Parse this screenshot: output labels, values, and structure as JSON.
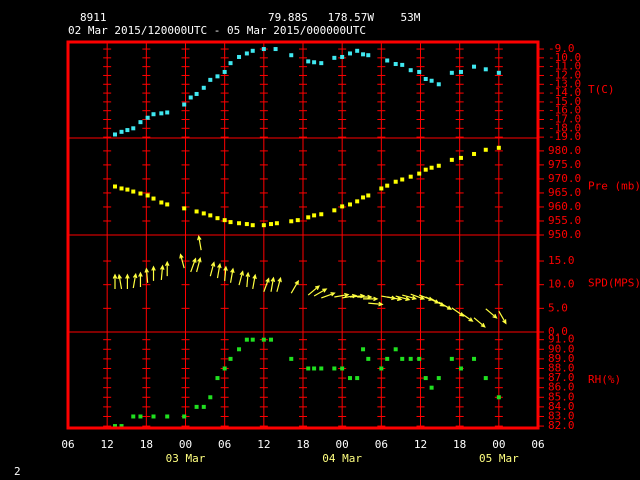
{
  "header": {
    "station": "8911",
    "location": "79.88S   178.57W    53M",
    "period": "02 Mar 2015/120000UTC - 05 Mar 2015/000000UTC"
  },
  "footer": {
    "page": "2"
  },
  "chart_data": [
    {
      "type": "scatter",
      "y_label": "T(C)",
      "color": "#40e8f0",
      "xlim": [
        6,
        78
      ],
      "ylim": [
        -19.1,
        -8.2
      ],
      "yticks": [
        {
          "value": -9,
          "label": "-9.0"
        },
        {
          "value": -10,
          "label": "-10.0"
        },
        {
          "value": -11,
          "label": "-11.0"
        },
        {
          "value": -12,
          "label": "-12.0"
        },
        {
          "value": -13,
          "label": "-13.0"
        },
        {
          "value": -14,
          "label": "-14.0"
        },
        {
          "value": -15,
          "label": "-15.0"
        },
        {
          "value": -16,
          "label": "-16.0"
        },
        {
          "value": -17,
          "label": "-17.0"
        },
        {
          "value": -18,
          "label": "-18.0"
        },
        {
          "value": -19,
          "label": "-19.0"
        }
      ],
      "x": [
        13.2,
        14.2,
        15.1,
        16,
        17.1,
        18.2,
        19.1,
        20.3,
        21.2,
        23.8,
        24.8,
        25.7,
        26.8,
        27.8,
        28.9,
        30,
        30.9,
        32.2,
        33.4,
        34.3,
        36,
        37.8,
        40.2,
        42.8,
        43.7,
        44.8,
        46.8,
        48,
        49.2,
        50.3,
        51.2,
        52,
        54.9,
        56.2,
        57.2,
        58.5,
        59.8,
        60.8,
        61.7,
        62.8,
        64.8,
        66.2,
        68.2,
        70,
        72
      ],
      "values": [
        -18.7,
        -18.4,
        -18.2,
        -18.0,
        -17.3,
        -16.8,
        -16.4,
        -16.3,
        -16.2,
        -15.3,
        -14.5,
        -14.1,
        -13.4,
        -12.5,
        -12.1,
        -11.6,
        -10.6,
        -9.9,
        -9.5,
        -9.2,
        -9.0,
        -9.0,
        -9.7,
        -10.4,
        -10.5,
        -10.6,
        -10.0,
        -9.9,
        -9.5,
        -9.2,
        -9.6,
        -9.7,
        -10.3,
        -10.7,
        -10.8,
        -11.4,
        -11.6,
        -12.4,
        -12.6,
        -13.0,
        -11.7,
        -11.6,
        -11.0,
        -11.3,
        -11.7
      ]
    },
    {
      "type": "scatter",
      "y_label": "Pre (mb)",
      "color": "#ffff00",
      "xlim": [
        6,
        78
      ],
      "ylim": [
        950,
        984.6
      ],
      "yticks": [
        {
          "value": 980,
          "label": "980.0"
        },
        {
          "value": 975,
          "label": "975.0"
        },
        {
          "value": 970,
          "label": "970.0"
        },
        {
          "value": 965,
          "label": "965.0"
        },
        {
          "value": 960,
          "label": "960.0"
        },
        {
          "value": 955,
          "label": "955.0"
        },
        {
          "value": 950,
          "label": "950.0"
        }
      ],
      "x": [
        13.2,
        14.2,
        15.1,
        16,
        17.1,
        18.2,
        19.1,
        20.3,
        21.2,
        23.8,
        25.7,
        26.8,
        27.8,
        28.9,
        30,
        30.9,
        32.2,
        33.4,
        34.3,
        36,
        37.1,
        38,
        40.2,
        41.2,
        42.8,
        43.7,
        44.8,
        46.8,
        48,
        49.2,
        50.3,
        51.2,
        52,
        54,
        54.9,
        56.2,
        57.2,
        58.5,
        59.8,
        60.8,
        61.7,
        62.8,
        64.8,
        66.2,
        68.2,
        70,
        72
      ],
      "values": [
        967.3,
        966.6,
        966.2,
        965.5,
        964.8,
        964.1,
        963.0,
        961.6,
        960.9,
        959.5,
        958.4,
        957.7,
        957.0,
        956.0,
        955.3,
        954.6,
        954.2,
        953.9,
        953.5,
        953.5,
        953.9,
        954.2,
        954.9,
        955.3,
        956.3,
        957.0,
        957.4,
        958.8,
        960.2,
        960.9,
        962.0,
        963.4,
        964.1,
        966.6,
        967.6,
        969.0,
        969.8,
        970.8,
        971.9,
        973.3,
        974.0,
        974.7,
        976.8,
        977.5,
        978.9,
        980.4,
        981.1
      ]
    },
    {
      "type": "vector",
      "y_label": "SPD(MPS)",
      "color": "#ffff40",
      "xlim": [
        6,
        78
      ],
      "ylim": [
        0,
        20.5
      ],
      "yticks": [
        {
          "value": 15,
          "label": "15.0"
        },
        {
          "value": 10,
          "label": "10.0"
        },
        {
          "value": 5,
          "label": "5.0"
        },
        {
          "value": 0,
          "label": "0.0"
        }
      ],
      "x": [
        13.2,
        14.2,
        15.1,
        16,
        17.1,
        18.2,
        19.1,
        20.3,
        21.2,
        23.8,
        24.8,
        25.7,
        26.4,
        27.8,
        28.9,
        30,
        30.9,
        32.2,
        33.4,
        34.3,
        36,
        37.1,
        38,
        40.2,
        42.8,
        43.7,
        44.8,
        46.8,
        48,
        49.2,
        50.3,
        51.2,
        52,
        54,
        54.9,
        56.2,
        57.2,
        58.5,
        59.8,
        60.8,
        61.7,
        62.8,
        64.8,
        66.2,
        68.2,
        70,
        72
      ],
      "values": [
        9.1,
        9.1,
        9.1,
        9.3,
        9.5,
        10.4,
        10.8,
        11.0,
        11.8,
        13.5,
        12.7,
        12.7,
        17.3,
        11.8,
        11.4,
        10.8,
        10.4,
        9.9,
        9.5,
        9.1,
        8.5,
        8.5,
        8.5,
        8.2,
        7.8,
        7.6,
        7.2,
        7.4,
        7.2,
        7.4,
        7.4,
        7.0,
        6.1,
        7.6,
        7.4,
        7.6,
        7.8,
        8.0,
        7.8,
        7.4,
        7.0,
        6.3,
        5.1,
        4.0,
        3.0,
        4.9,
        4.4
      ],
      "directions": [
        0,
        350,
        0,
        10,
        0,
        355,
        0,
        5,
        0,
        345,
        20,
        15,
        350,
        15,
        10,
        5,
        10,
        15,
        5,
        10,
        20,
        10,
        15,
        30,
        50,
        60,
        70,
        80,
        80,
        85,
        90,
        90,
        95,
        100,
        100,
        105,
        105,
        110,
        110,
        115,
        120,
        120,
        125,
        125,
        130,
        130,
        150
      ]
    },
    {
      "type": "scatter",
      "y_label": "RH(%)",
      "color": "#20e020",
      "xlim": [
        6,
        78
      ],
      "ylim": [
        81.8,
        91.8
      ],
      "yticks": [
        {
          "value": 91,
          "label": "91.0"
        },
        {
          "value": 90,
          "label": "90.0"
        },
        {
          "value": 89,
          "label": "89.0"
        },
        {
          "value": 88,
          "label": "88.0"
        },
        {
          "value": 87,
          "label": "87.0"
        },
        {
          "value": 86,
          "label": "86.0"
        },
        {
          "value": 85,
          "label": "85.0"
        },
        {
          "value": 84,
          "label": "84.0"
        },
        {
          "value": 83,
          "label": "83.0"
        },
        {
          "value": 82,
          "label": "82.0"
        }
      ],
      "x": [
        13.2,
        14.2,
        16,
        17.1,
        19.1,
        21.2,
        23.8,
        25.7,
        26.8,
        27.8,
        28.9,
        30,
        30.9,
        32.2,
        33.4,
        34.3,
        36,
        37.1,
        40.2,
        42.8,
        43.7,
        44.8,
        46.8,
        48,
        49.2,
        50.3,
        51.2,
        52,
        54,
        54.9,
        56.2,
        57.2,
        58.5,
        59.8,
        60.8,
        61.7,
        62.8,
        64.8,
        66.2,
        68.2,
        70,
        72
      ],
      "values": [
        82,
        82,
        83,
        83,
        83,
        83,
        83,
        84,
        84,
        85,
        87,
        88,
        89,
        90,
        91,
        91,
        91,
        91,
        89,
        88,
        88,
        88,
        88,
        88,
        87,
        87,
        90,
        89,
        88,
        89,
        90,
        89,
        89,
        89,
        87,
        86,
        87,
        89,
        88,
        89,
        87,
        85
      ],
      "xticks": [
        {
          "value": 6,
          "label": "06"
        },
        {
          "value": 12,
          "label": "12"
        },
        {
          "value": 18,
          "label": "18"
        },
        {
          "value": 24,
          "label": "00"
        },
        {
          "value": 30,
          "label": "06"
        },
        {
          "value": 36,
          "label": "12"
        },
        {
          "value": 42,
          "label": "18"
        },
        {
          "value": 48,
          "label": "00"
        },
        {
          "value": 54,
          "label": "06"
        },
        {
          "value": 60,
          "label": "12"
        },
        {
          "value": 66,
          "label": "18"
        },
        {
          "value": 72,
          "label": "00"
        },
        {
          "value": 78,
          "label": "06"
        }
      ],
      "date_labels": [
        {
          "value": 24,
          "label": "03 Mar"
        },
        {
          "value": 48,
          "label": "04 Mar"
        },
        {
          "value": 72,
          "label": "05 Mar"
        }
      ]
    }
  ]
}
